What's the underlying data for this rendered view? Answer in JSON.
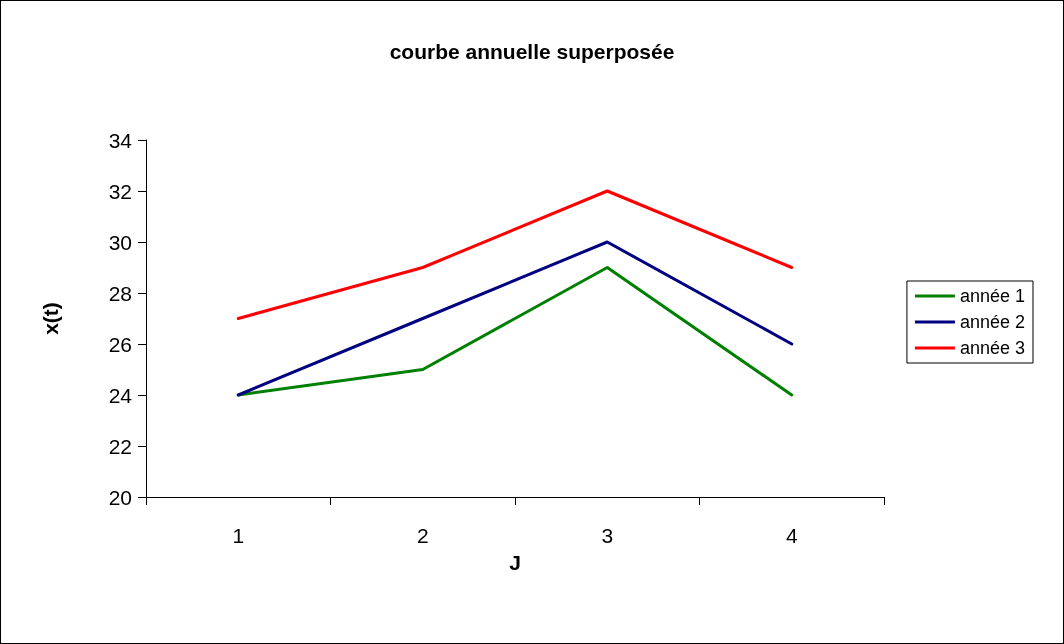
{
  "chart_data": {
    "type": "line",
    "title": "courbe annuelle superposée",
    "xlabel": "J",
    "ylabel": "x(t)",
    "categories": [
      "1",
      "2",
      "3",
      "4"
    ],
    "series": [
      {
        "name": "année 1",
        "color": "#008000",
        "values": [
          24,
          25,
          29,
          24
        ]
      },
      {
        "name": "année 2",
        "color": "#000080",
        "values": [
          24,
          27,
          30,
          26
        ]
      },
      {
        "name": "année 3",
        "color": "#ff0000",
        "values": [
          27,
          29,
          32,
          29
        ]
      }
    ],
    "ylim": [
      20,
      34
    ],
    "yticks": [
      20,
      22,
      24,
      26,
      28,
      30,
      32,
      34
    ],
    "grid": false,
    "legend": "right",
    "marker": "none",
    "line_style": "solid"
  }
}
